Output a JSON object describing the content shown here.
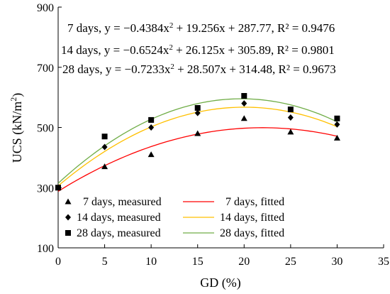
{
  "chart_data": {
    "type": "scatter",
    "xlabel": "GD (%)",
    "ylabel_main": "UCS (kN/m",
    "ylabel_sup": "2",
    "ylabel_tail": ")",
    "xlim": [
      0,
      35
    ],
    "ylim": [
      100,
      900
    ],
    "x_ticks": [
      "0",
      "5",
      "10",
      "15",
      "20",
      "25",
      "30",
      "35"
    ],
    "y_ticks": [
      "100",
      "300",
      "500",
      "700",
      "900"
    ],
    "grid": false,
    "legend_position": "bottom-left",
    "x": [
      0,
      5,
      10,
      15,
      20,
      25,
      30
    ],
    "series": [
      {
        "name": "7 days, measured",
        "marker": "triangle",
        "values": [
          300,
          370,
          410,
          480,
          530,
          485,
          465
        ]
      },
      {
        "name": "14 days, measured",
        "marker": "diamond",
        "values": [
          300,
          435,
          500,
          548,
          580,
          533,
          510
        ]
      },
      {
        "name": "28 days, measured",
        "marker": "square",
        "values": [
          300,
          470,
          525,
          565,
          605,
          560,
          530
        ]
      }
    ],
    "fits": [
      {
        "name": "7 days, fitted",
        "color": "#ff0000",
        "a": -0.4384,
        "b": 19.256,
        "c": 287.77,
        "eq_prefix": "7 days, y = −0.4384x",
        "eq_sup": "2",
        "eq_suffix": " + 19.256x + 287.77, R² = 0.9476"
      },
      {
        "name": "14 days, fitted",
        "color": "#ffc000",
        "a": -0.6524,
        "b": 26.125,
        "c": 305.89,
        "eq_prefix": "14 days, y = −0.6524x",
        "eq_sup": "2",
        "eq_suffix": " + 26.125x + 305.89, R² = 0.9801"
      },
      {
        "name": "28 days, fitted",
        "color": "#70ad47",
        "a": -0.7233,
        "b": 28.507,
        "c": 314.48,
        "eq_prefix": "28 days, y = −0.7233x",
        "eq_sup": "2",
        "eq_suffix": " + 28.507x + 314.48, R² = 0.9673"
      }
    ]
  }
}
